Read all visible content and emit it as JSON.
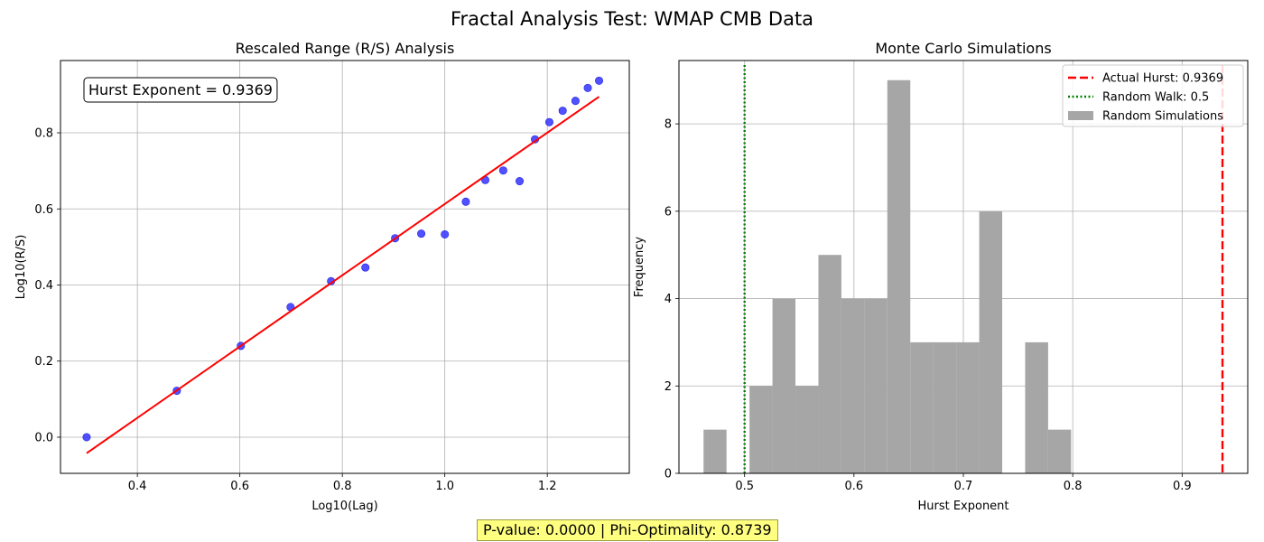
{
  "figure": {
    "suptitle": "Fractal Analysis Test: WMAP CMB Data",
    "footer": "P-value: 0.0000 | Phi-Optimality: 0.8739"
  },
  "colors": {
    "scatter": "#3333ff",
    "fit": "#ff0000",
    "hist": "#a6a6a6",
    "actual": "#ff0000",
    "random": "#008000",
    "footer_bg": "#ffff80"
  },
  "chart_data": [
    {
      "type": "scatter",
      "title": "Rescaled Range (R/S) Analysis",
      "xlabel": "Log10(Lag)",
      "ylabel": "Log10(R/S)",
      "xlim": [
        0.25,
        1.36
      ],
      "ylim": [
        -0.095,
        0.99
      ],
      "xticks": [
        0.4,
        0.6,
        0.8,
        1.0,
        1.2
      ],
      "yticks": [
        0.0,
        0.2,
        0.4,
        0.6,
        0.8
      ],
      "xtick_labels": [
        "0.4",
        "0.6",
        "0.8",
        "1.0",
        "1.2"
      ],
      "ytick_labels": [
        "0.0",
        "0.2",
        "0.4",
        "0.6",
        "0.8"
      ],
      "grid": true,
      "annotation": "Hurst Exponent = 0.9369",
      "points": [
        [
          0.301,
          0.0
        ],
        [
          0.477,
          0.122
        ],
        [
          0.602,
          0.24
        ],
        [
          0.699,
          0.342
        ],
        [
          0.778,
          0.41
        ],
        [
          0.845,
          0.446
        ],
        [
          0.903,
          0.523
        ],
        [
          0.954,
          0.535
        ],
        [
          1.0,
          0.533
        ],
        [
          1.041,
          0.619
        ],
        [
          1.079,
          0.676
        ],
        [
          1.114,
          0.701
        ],
        [
          1.146,
          0.673
        ],
        [
          1.176,
          0.783
        ],
        [
          1.204,
          0.828
        ],
        [
          1.23,
          0.858
        ],
        [
          1.255,
          0.884
        ],
        [
          1.279,
          0.918
        ],
        [
          1.301,
          0.937
        ]
      ],
      "fit_line": [
        [
          0.301,
          -0.042
        ],
        [
          1.301,
          0.895
        ]
      ]
    },
    {
      "type": "histogram",
      "title": "Monte Carlo Simulations",
      "xlabel": "Hurst Exponent",
      "ylabel": "Frequency",
      "xlim": [
        0.44,
        0.96
      ],
      "ylim": [
        0,
        9.45
      ],
      "xticks": [
        0.5,
        0.6,
        0.7,
        0.8,
        0.9
      ],
      "yticks": [
        0,
        2,
        4,
        6,
        8
      ],
      "xtick_labels": [
        "0.5",
        "0.6",
        "0.7",
        "0.8",
        "0.9"
      ],
      "ytick_labels": [
        "0",
        "2",
        "4",
        "6",
        "8"
      ],
      "grid": true,
      "bin_edges": [
        0.4625,
        0.4835,
        0.5045,
        0.5255,
        0.5465,
        0.5675,
        0.5885,
        0.6095,
        0.6305,
        0.6515,
        0.6725,
        0.6935,
        0.7145,
        0.7355,
        0.7565,
        0.7775,
        0.7985
      ],
      "counts": [
        1,
        0,
        2,
        4,
        2,
        5,
        4,
        4,
        9,
        3,
        3,
        3,
        6,
        0,
        3,
        1
      ],
      "vlines": [
        {
          "x": 0.9369,
          "style": "dashed",
          "color_key": "actual"
        },
        {
          "x": 0.5,
          "style": "dotted",
          "color_key": "random"
        }
      ],
      "legend": {
        "position": "top-right",
        "entries": [
          {
            "label": "Actual Hurst: 0.9369",
            "kind": "dashed",
            "color_key": "actual"
          },
          {
            "label": "Random Walk: 0.5",
            "kind": "dotted",
            "color_key": "random"
          },
          {
            "label": "Random Simulations",
            "kind": "patch",
            "color_key": "hist"
          }
        ]
      }
    }
  ]
}
